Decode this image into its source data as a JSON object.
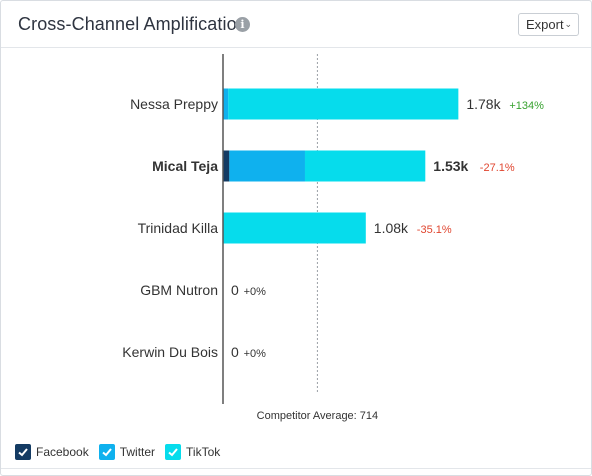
{
  "header": {
    "title": "Cross-Channel Amplification",
    "info_icon": "info-circle-icon",
    "export_label": "Export",
    "export_icon": "chevron-down-icon"
  },
  "colors": {
    "facebook": "#143b63",
    "twitter": "#0fb1ee",
    "tiktok": "#06dcec",
    "positive": "#36a12e",
    "negative": "#e0452f"
  },
  "legend": [
    {
      "label": "Facebook",
      "color": "#143b63"
    },
    {
      "label": "Twitter",
      "color": "#0fb1ee"
    },
    {
      "label": "TikTok",
      "color": "#06dcec"
    }
  ],
  "chart_data": {
    "type": "bar",
    "orientation": "horizontal",
    "stacked": true,
    "categories": [
      "Nessa Preppy",
      "Mical Teja",
      "Trinidad Killa",
      "GBM Nutron",
      "Kerwin Du Bois"
    ],
    "highlighted": "Mical Teja",
    "series": [
      {
        "name": "Facebook",
        "values": [
          0,
          48,
          0,
          0,
          0
        ]
      },
      {
        "name": "Twitter",
        "values": [
          40,
          572,
          0,
          0,
          0
        ]
      },
      {
        "name": "TikTok",
        "values": [
          1740,
          910,
          1080,
          0,
          0
        ]
      }
    ],
    "totals": [
      "1.78k",
      "1.53k",
      "1.08k",
      "0",
      "0"
    ],
    "changes": [
      "+134%",
      "-27.1%",
      "-35.1%",
      "+0%",
      "+0%"
    ],
    "xlim": [
      0,
      1800
    ],
    "reference_line": {
      "value": 714,
      "label": "Competitor Average: 714"
    }
  }
}
